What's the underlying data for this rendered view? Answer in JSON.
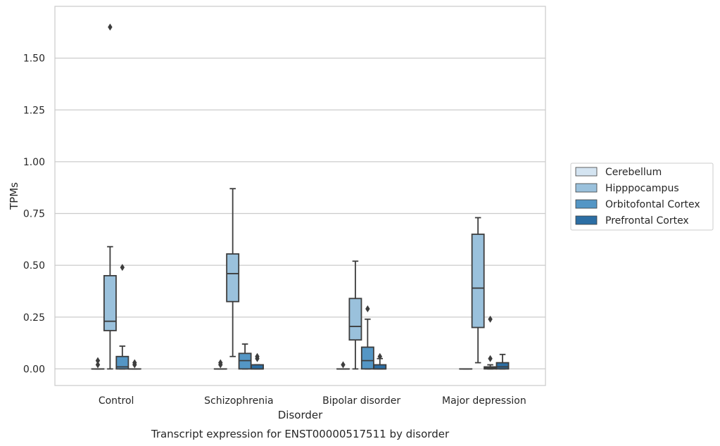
{
  "chart_data": {
    "type": "box",
    "caption": "Transcript expression for ENST00000517511 by disorder",
    "xlabel": "Disorder",
    "ylabel": "TPMs",
    "ylim": [
      -0.08,
      1.75
    ],
    "yticks": [
      0.0,
      0.25,
      0.5,
      0.75,
      1.0,
      1.25,
      1.5
    ],
    "ytick_labels": [
      "0.00",
      "0.25",
      "0.50",
      "0.75",
      "1.00",
      "1.25",
      "1.50"
    ],
    "grid": true,
    "legend_position": "right",
    "categories": [
      "Control",
      "Schizophrenia",
      "Bipolar disorder",
      "Major depression"
    ],
    "series": [
      {
        "name": "Cerebellum",
        "color": "#d4e4f1",
        "boxes": [
          {
            "q1": 0.0,
            "median": 0.0,
            "q3": 0.0,
            "whisker_low": 0.0,
            "whisker_high": 0.0,
            "outliers": [
              0.02,
              0.04
            ]
          },
          {
            "q1": 0.0,
            "median": 0.0,
            "q3": 0.0,
            "whisker_low": 0.0,
            "whisker_high": 0.0,
            "outliers": [
              0.02,
              0.03
            ]
          },
          {
            "q1": 0.0,
            "median": 0.0,
            "q3": 0.0,
            "whisker_low": 0.0,
            "whisker_high": 0.0,
            "outliers": [
              0.02
            ]
          },
          {
            "q1": 0.0,
            "median": 0.0,
            "q3": 0.0,
            "whisker_low": 0.0,
            "whisker_high": 0.0,
            "outliers": []
          }
        ]
      },
      {
        "name": "Hipppocampus",
        "color": "#9ac1dc",
        "boxes": [
          {
            "q1": 0.185,
            "median": 0.23,
            "q3": 0.45,
            "whisker_low": 0.0,
            "whisker_high": 0.59,
            "outliers": [
              1.65
            ]
          },
          {
            "q1": 0.325,
            "median": 0.46,
            "q3": 0.555,
            "whisker_low": 0.06,
            "whisker_high": 0.87,
            "outliers": []
          },
          {
            "q1": 0.14,
            "median": 0.205,
            "q3": 0.34,
            "whisker_low": 0.0,
            "whisker_high": 0.52,
            "outliers": []
          },
          {
            "q1": 0.2,
            "median": 0.39,
            "q3": 0.65,
            "whisker_low": 0.03,
            "whisker_high": 0.73,
            "outliers": []
          }
        ]
      },
      {
        "name": "Orbitofontal Cortex",
        "color": "#5496c5",
        "boxes": [
          {
            "q1": 0.0,
            "median": 0.01,
            "q3": 0.06,
            "whisker_low": 0.0,
            "whisker_high": 0.11,
            "outliers": [
              0.49
            ]
          },
          {
            "q1": 0.0,
            "median": 0.04,
            "q3": 0.075,
            "whisker_low": 0.0,
            "whisker_high": 0.12,
            "outliers": []
          },
          {
            "q1": 0.0,
            "median": 0.04,
            "q3": 0.105,
            "whisker_low": 0.0,
            "whisker_high": 0.24,
            "outliers": [
              0.29
            ]
          },
          {
            "q1": 0.0,
            "median": 0.005,
            "q3": 0.01,
            "whisker_low": 0.0,
            "whisker_high": 0.02,
            "outliers": [
              0.05,
              0.24
            ]
          }
        ]
      },
      {
        "name": "Prefrontal Cortex",
        "color": "#2c6ea4",
        "boxes": [
          {
            "q1": 0.0,
            "median": 0.0,
            "q3": 0.0,
            "whisker_low": 0.0,
            "whisker_high": 0.0,
            "outliers": [
              0.02,
              0.03
            ]
          },
          {
            "q1": 0.0,
            "median": 0.0,
            "q3": 0.02,
            "whisker_low": 0.0,
            "whisker_high": 0.02,
            "outliers": [
              0.05,
              0.06
            ]
          },
          {
            "q1": 0.0,
            "median": 0.0,
            "q3": 0.02,
            "whisker_low": 0.0,
            "whisker_high": 0.05,
            "outliers": [
              0.06
            ]
          },
          {
            "q1": 0.0,
            "median": 0.01,
            "q3": 0.03,
            "whisker_low": 0.0,
            "whisker_high": 0.07,
            "outliers": []
          }
        ]
      }
    ]
  }
}
